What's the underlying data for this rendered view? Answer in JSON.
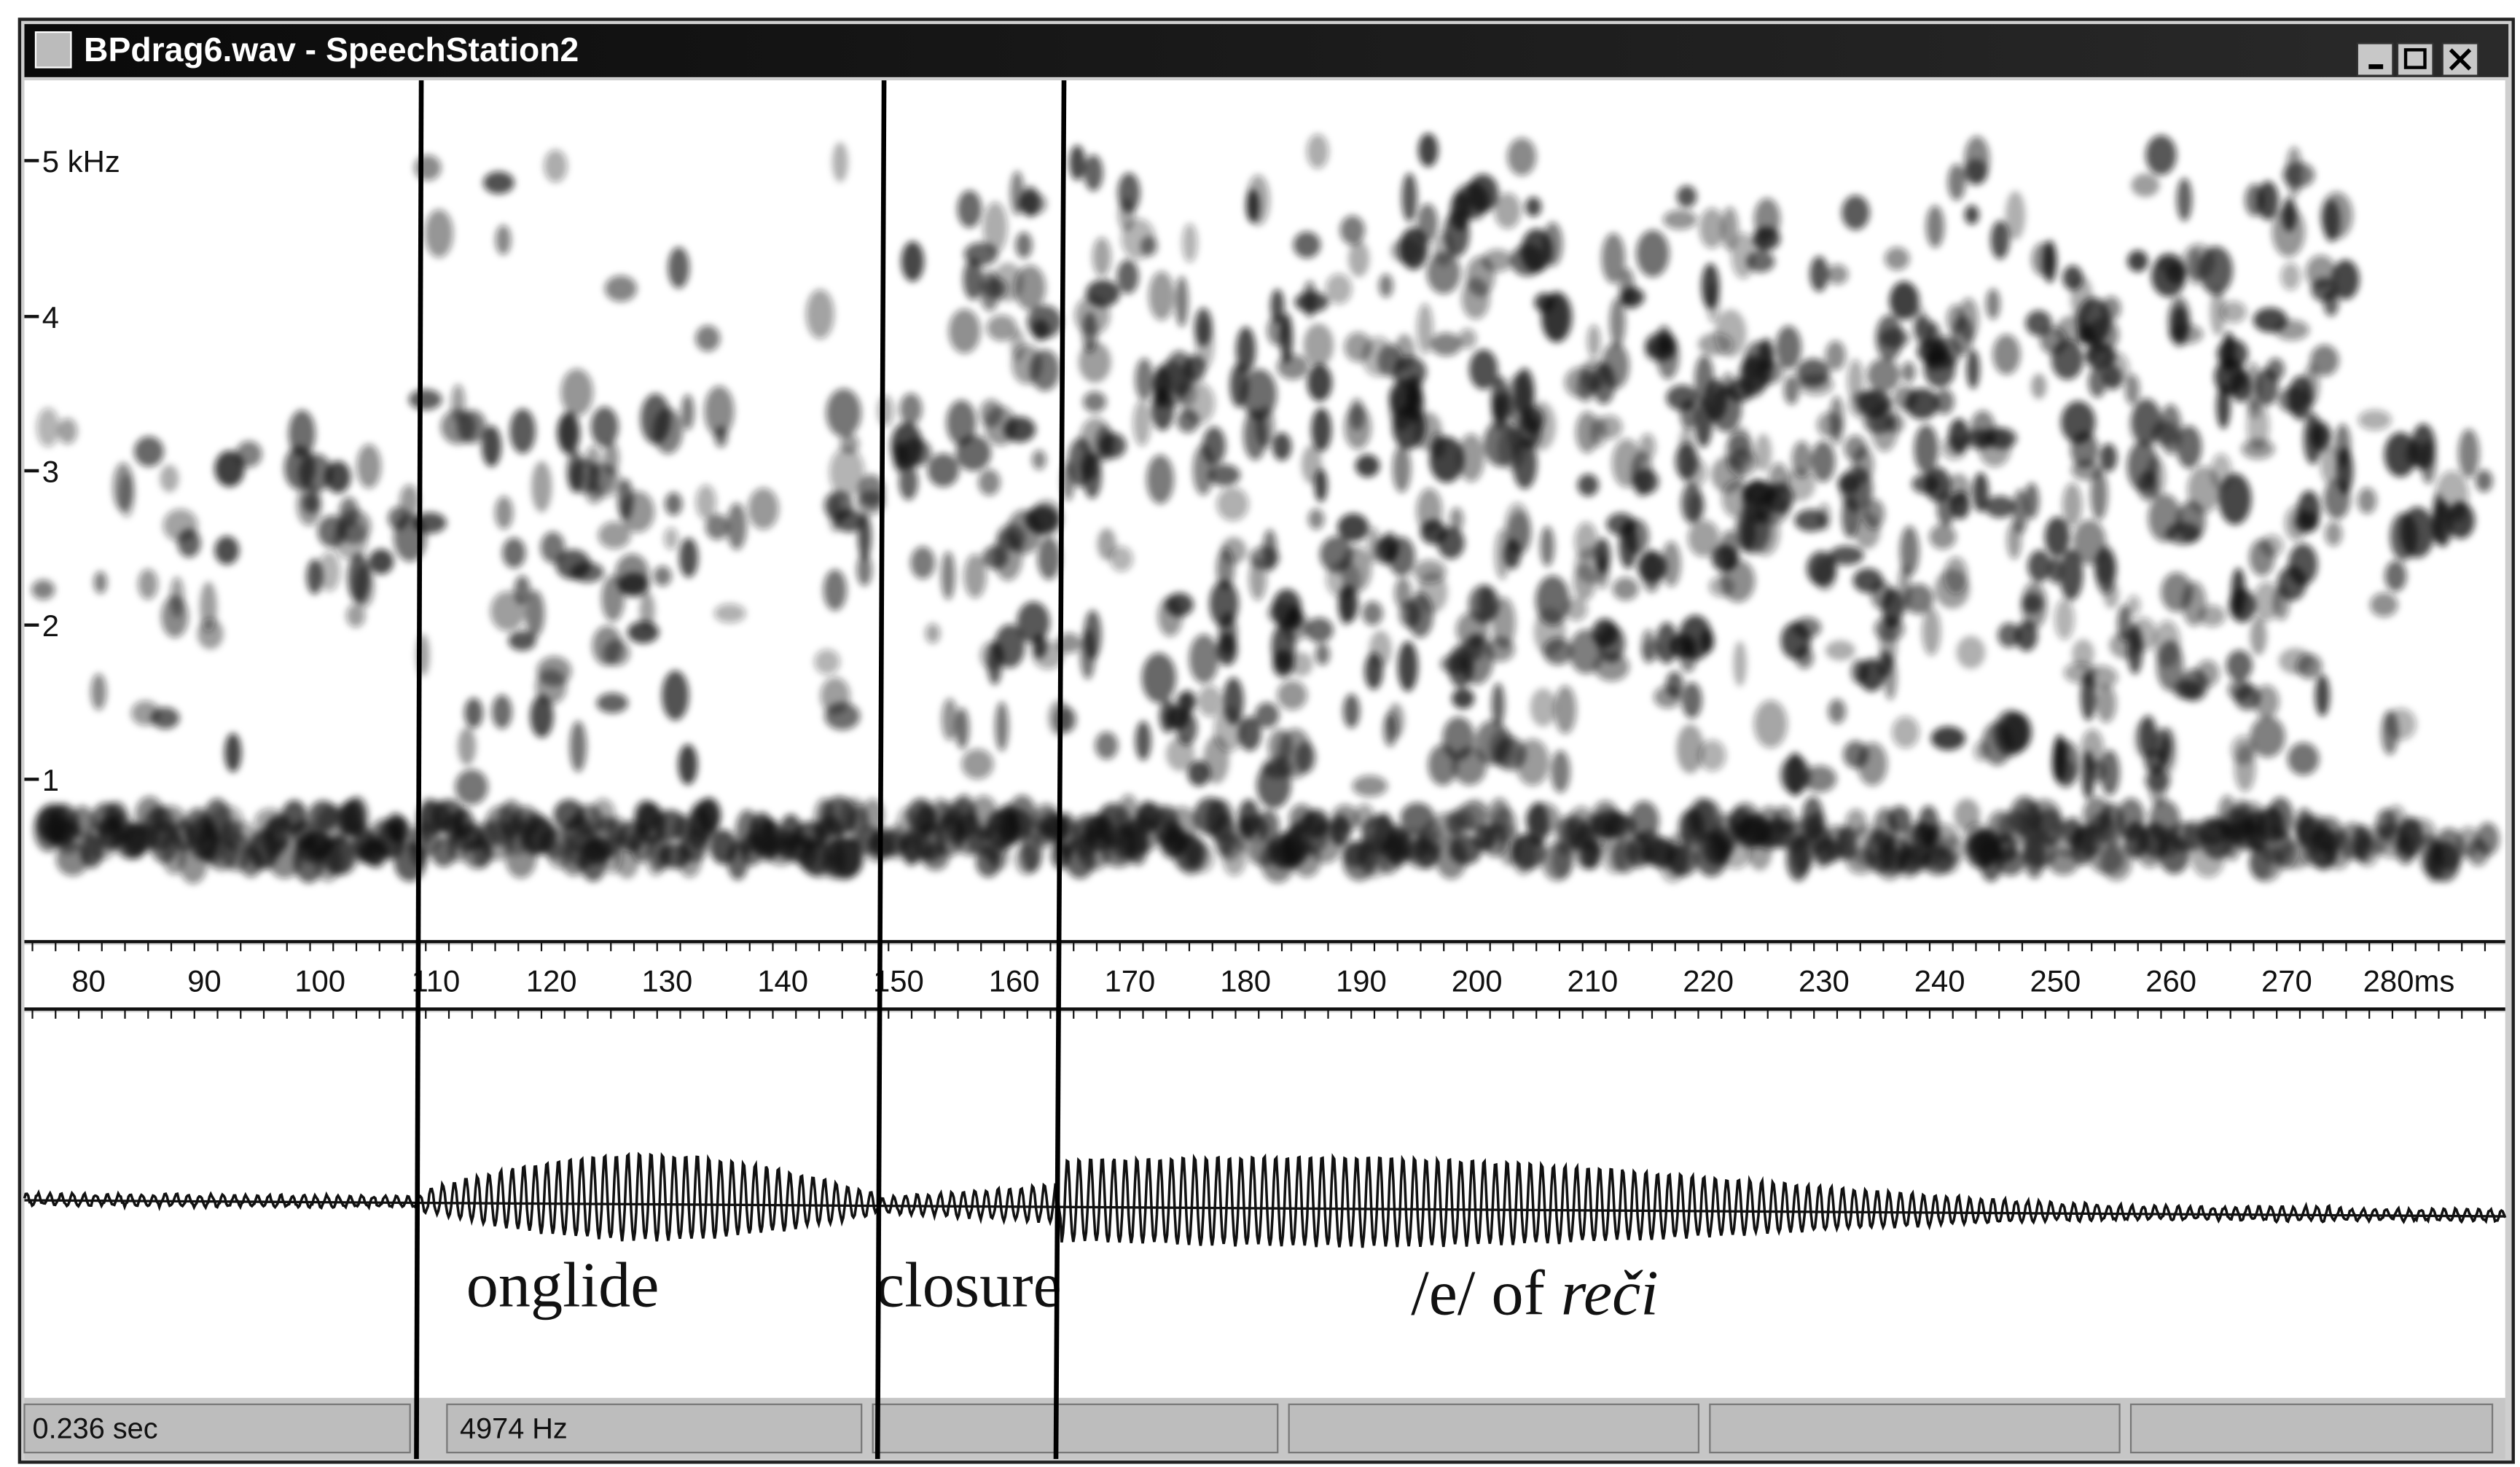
{
  "window": {
    "title": "BPdrag6.wav - SpeechStation2"
  },
  "frequency_axis": {
    "labels": [
      "5 kHz",
      "4",
      "3",
      "2",
      "1"
    ]
  },
  "time_axis": {
    "labels": [
      "80",
      "90",
      "100",
      "110",
      "120",
      "130",
      "140",
      "150",
      "160",
      "170",
      "180",
      "190",
      "200",
      "210",
      "220",
      "230",
      "240",
      "250",
      "260",
      "270",
      "280ms"
    ]
  },
  "annotations": {
    "onglide": "onglide",
    "closure": "closure",
    "vowel_prefix": "/e/ of",
    "vowel_word": "reči"
  },
  "status_bar": [
    "0.236 sec",
    "4974 Hz"
  ]
}
